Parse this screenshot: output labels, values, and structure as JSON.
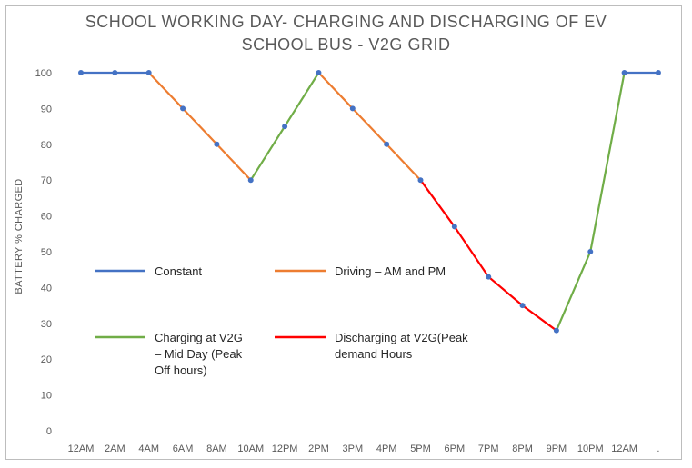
{
  "chart_data": {
    "type": "line",
    "title_line1": "SCHOOL WORKING DAY- CHARGING AND DISCHARGING OF EV",
    "title_line2": "SCHOOL BUS - V2G GRID",
    "xlabel": "",
    "ylabel": "BATTERY % CHARGED",
    "ylim": [
      0,
      100
    ],
    "yticks": [
      0,
      10,
      20,
      30,
      40,
      50,
      60,
      70,
      80,
      90,
      100
    ],
    "categories": [
      "12AM",
      "2AM",
      "4AM",
      "6AM",
      "8AM",
      "10AM",
      "12PM",
      "2PM",
      "3PM",
      "4PM",
      "5PM",
      "6PM",
      "7PM",
      "8PM",
      "9PM",
      "10PM",
      "12AM",
      "."
    ],
    "values": [
      100,
      100,
      100,
      90,
      80,
      70,
      85,
      100,
      90,
      80,
      70,
      57,
      43,
      35,
      28,
      50,
      100,
      100
    ],
    "grid": false,
    "series": [
      {
        "name": "Constant",
        "color": "#4472c4",
        "segments": [
          [
            0,
            2
          ],
          [
            16,
            17
          ]
        ]
      },
      {
        "name": "Driving – AM and PM",
        "color": "#ed7d31",
        "segments": [
          [
            2,
            5
          ],
          [
            7,
            10
          ]
        ]
      },
      {
        "name": "Charging at V2G – Mid Day (Peak Off hours)",
        "color": "#70ad47",
        "segments": [
          [
            5,
            7
          ],
          [
            14,
            16
          ]
        ]
      },
      {
        "name": "Discharging at V2G(Peak demand Hours",
        "color": "#ff0000",
        "segments": [
          [
            10,
            14
          ]
        ]
      }
    ],
    "marker_color": "#4472c4",
    "legend": {
      "placement": "inside-lower-left",
      "items": [
        {
          "lines": [
            "Constant"
          ],
          "color": "#4472c4"
        },
        {
          "lines": [
            "Driving – AM and PM"
          ],
          "color": "#ed7d31"
        },
        {
          "lines": [
            "Charging at V2G",
            "– Mid Day (Peak",
            "Off hours)"
          ],
          "color": "#70ad47"
        },
        {
          "lines": [
            "Discharging at V2G(Peak",
            "demand Hours"
          ],
          "color": "#ff0000"
        }
      ]
    }
  }
}
